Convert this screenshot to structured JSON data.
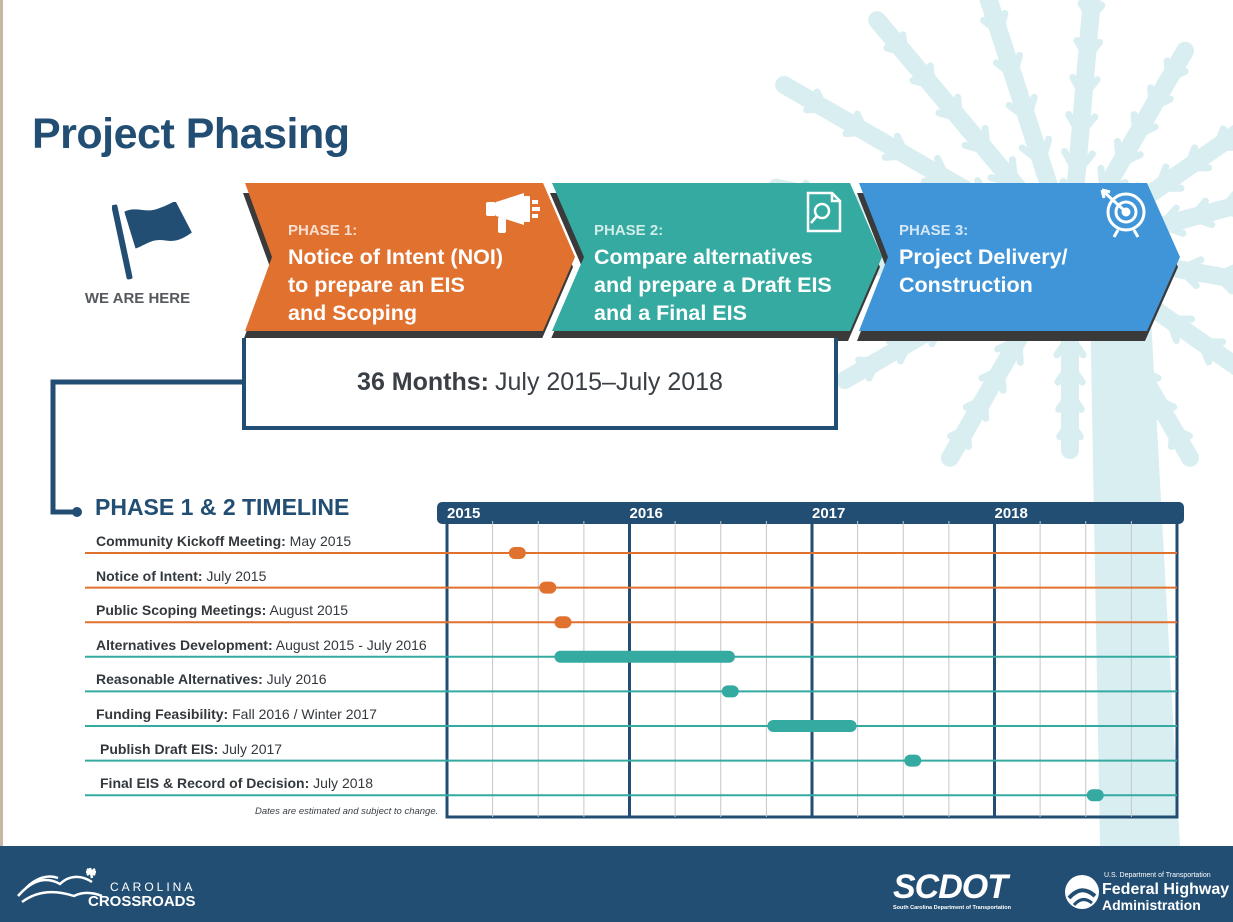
{
  "title": "Project Phasing",
  "location_marker": {
    "icon": "flag-icon",
    "label": "WE ARE HERE"
  },
  "phases": [
    {
      "label": "PHASE 1:",
      "title": "Notice of Intent (NOI)\nto prepare an EIS\nand Scoping",
      "icon": "megaphone-icon",
      "color": "#e0712f"
    },
    {
      "label": "PHASE 2:",
      "title": "Compare alternatives\nand prepare a Draft EIS\nand a Final EIS",
      "icon": "document-search-icon",
      "color": "#34aaa1"
    },
    {
      "label": "PHASE 3:",
      "title": "Project Delivery/\nConstruction",
      "icon": "target-icon",
      "color": "#3f95d7"
    }
  ],
  "duration": {
    "bold": "36 Months:",
    "text": "July 2015–July 2018"
  },
  "timeline": {
    "heading": "PHASE 1 & 2 TIMELINE",
    "years": [
      "2015",
      "2016",
      "2017",
      "2018"
    ],
    "tasks": [
      {
        "name": "Community Kickoff  Meeting:",
        "when": " May 2015",
        "phase": 1,
        "start": "2015-05",
        "end": "2015-05"
      },
      {
        "name": "Notice of Intent:",
        "when": " July 2015",
        "phase": 1,
        "start": "2015-07",
        "end": "2015-07"
      },
      {
        "name": "Public Scoping Meetings:",
        "when": " August 2015",
        "phase": 1,
        "start": "2015-08",
        "end": "2015-08"
      },
      {
        "name": "Alternatives Development:",
        "when": " August 2015 - July 2016",
        "phase": 2,
        "start": "2015-08",
        "end": "2016-07"
      },
      {
        "name": "Reasonable Alternatives:",
        "when": " July 2016",
        "phase": 2,
        "start": "2016-07",
        "end": "2016-07"
      },
      {
        "name": "Funding Feasibility:",
        "when": " Fall 2016 / Winter 2017",
        "phase": 2,
        "start": "2016-10",
        "end": "2017-03"
      },
      {
        "name": "Publish Draft EIS:",
        "when": " July 2017",
        "phase": 2,
        "start": "2017-07",
        "end": "2017-07"
      },
      {
        "name": "Final EIS & Record of Decision:",
        "when": " July 2018",
        "phase": 2,
        "start": "2018-07",
        "end": "2018-07"
      }
    ],
    "disclaimer": "Dates are estimated and subject to change."
  },
  "colors": {
    "navy": "#234e73",
    "orange": "#e0712f",
    "teal": "#34aaa1",
    "blue": "#3f95d7",
    "watermark": "#d9eef1",
    "grid": "#c6c6c6"
  },
  "footer": {
    "carolina_crossroads": {
      "line1": "CAROLINA",
      "line2": "CROSSROADS"
    },
    "scdot": {
      "name": "SCDOT",
      "sub": "South Carolina Department of Transportation"
    },
    "fhwa": {
      "line1": "U.S. Department of Transportation",
      "line2": "Federal Highway",
      "line3": "Administration"
    }
  }
}
